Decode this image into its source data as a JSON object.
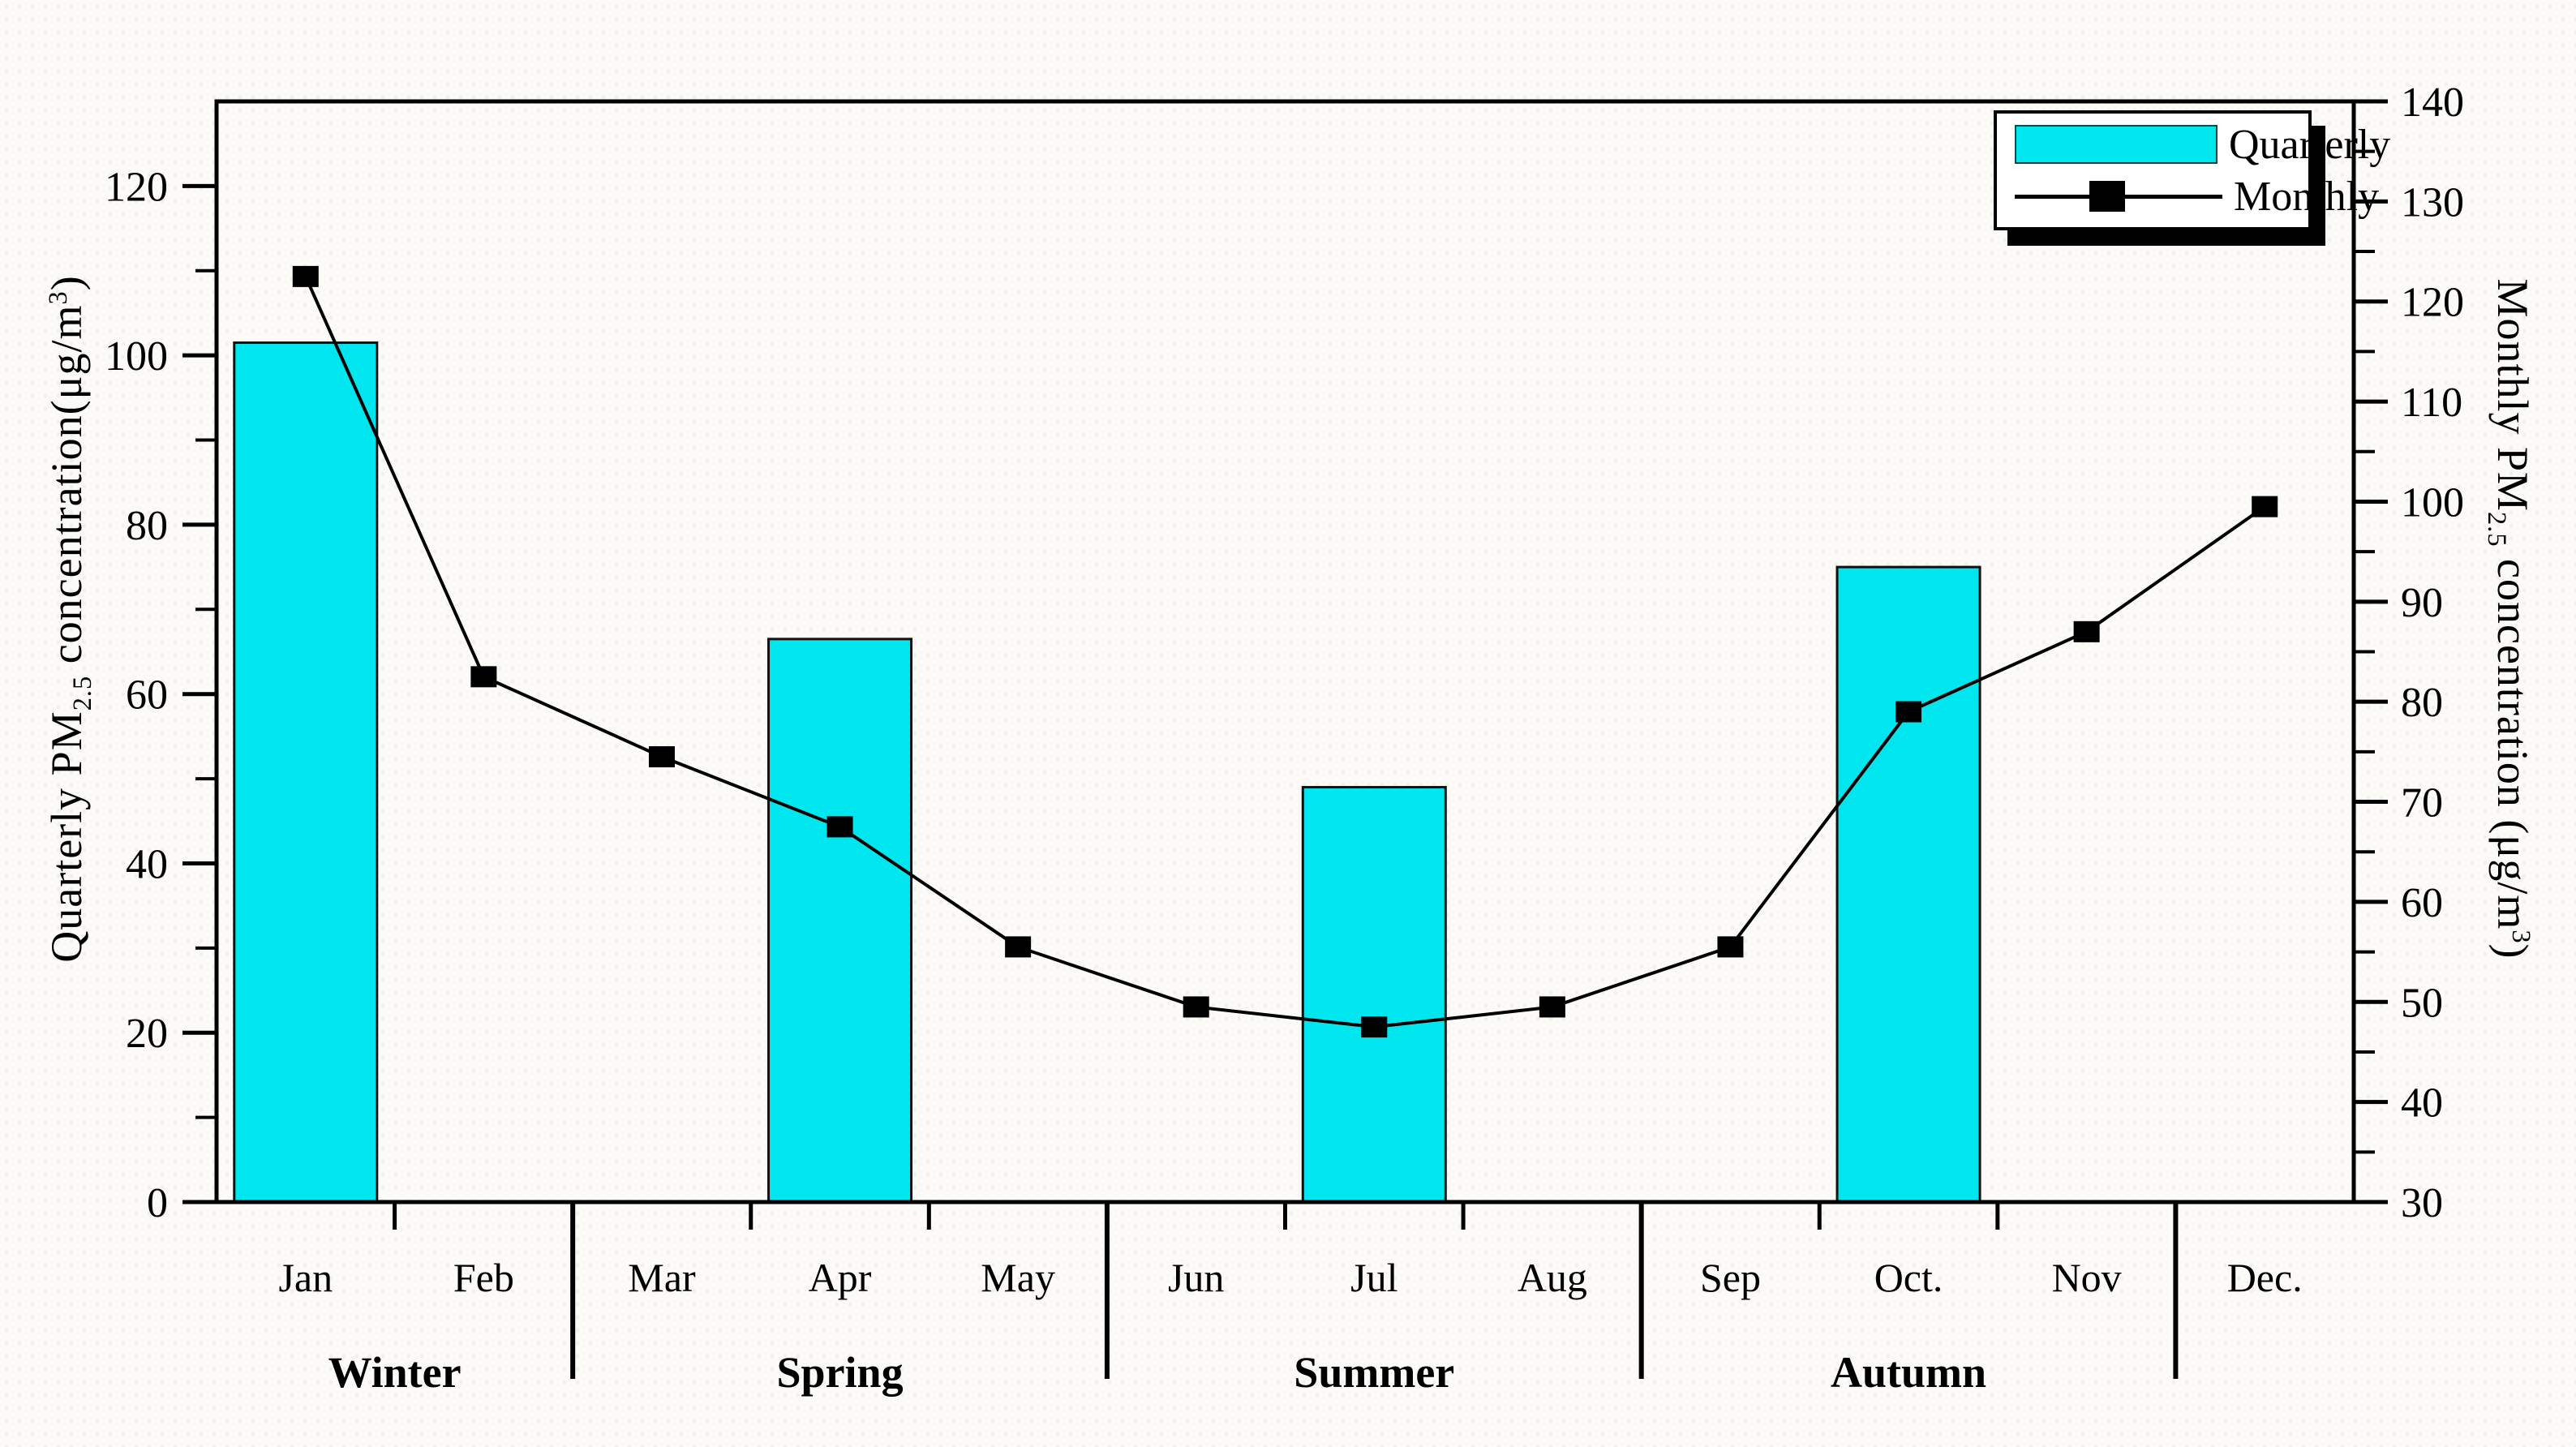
{
  "chart_data": {
    "type": "bar+line-dual-axis",
    "months": [
      "Jan",
      "Feb",
      "Mar",
      "Apr",
      "May",
      "Jun",
      "Jul",
      "Aug",
      "Sep",
      "Oct.",
      "Nov",
      "Dec."
    ],
    "seasons": [
      {
        "label": "Winter",
        "month_indices": [
          0,
          1
        ]
      },
      {
        "label": "Spring",
        "month_indices": [
          2,
          3,
          4
        ]
      },
      {
        "label": "Summer",
        "month_indices": [
          5,
          6,
          7
        ]
      },
      {
        "label": "Autumn",
        "month_indices": [
          8,
          9,
          10
        ]
      },
      {
        "label": "",
        "month_indices": [
          11
        ]
      }
    ],
    "season_separators_after_month_index": [
      1,
      4,
      7,
      10
    ],
    "series": [
      {
        "name": "Quarterly",
        "type": "bar",
        "axis": "left",
        "points": [
          {
            "month_index": 0,
            "season": "Winter",
            "value": 101.5
          },
          {
            "month_index": 3,
            "season": "Spring",
            "value": 66.5
          },
          {
            "month_index": 6,
            "season": "Summer",
            "value": 49
          },
          {
            "month_index": 9,
            "season": "Autumn",
            "value": 75
          }
        ]
      },
      {
        "name": "Monthly",
        "type": "line",
        "axis": "right",
        "values": [
          122.5,
          82.5,
          74.5,
          67.5,
          55.5,
          49.5,
          47.5,
          49.5,
          55.5,
          79,
          87,
          99.5
        ]
      }
    ],
    "left_axis": {
      "title_parts": {
        "p1": "Quarterly PM",
        "sub": "2.5",
        "p2": " concentration(μg/m",
        "sup": "3",
        "p3": ")"
      },
      "min": 0,
      "max": 130,
      "major_step": 20,
      "minor_step": 10,
      "tick_labels": [
        "0",
        "20",
        "40",
        "60",
        "80",
        "100",
        "120"
      ]
    },
    "right_axis": {
      "title_parts": {
        "p1": "Monthly PM",
        "sub": "2.5",
        "p2": " concentration (μg/m",
        "sup": "3",
        "p3": ")"
      },
      "min": 30,
      "max": 140,
      "major_step": 10,
      "minor_step": 5,
      "tick_labels": [
        "30",
        "40",
        "50",
        "60",
        "70",
        "80",
        "90",
        "100",
        "110",
        "120",
        "130",
        "140"
      ]
    },
    "legend": {
      "position": "top-right",
      "quarterly_label": "Quarterly",
      "monthly_label": "Monthly"
    },
    "grid": "off",
    "title": ""
  },
  "colors": {
    "bar_fill": "#00e6ee",
    "bar_border": "#111111",
    "line": "#000000",
    "marker": "#000000",
    "frame": "#000000",
    "text": "#000000",
    "legend_background": "#ffffff",
    "legend_shadow": "#000000",
    "background": "#fbfaf6"
  }
}
